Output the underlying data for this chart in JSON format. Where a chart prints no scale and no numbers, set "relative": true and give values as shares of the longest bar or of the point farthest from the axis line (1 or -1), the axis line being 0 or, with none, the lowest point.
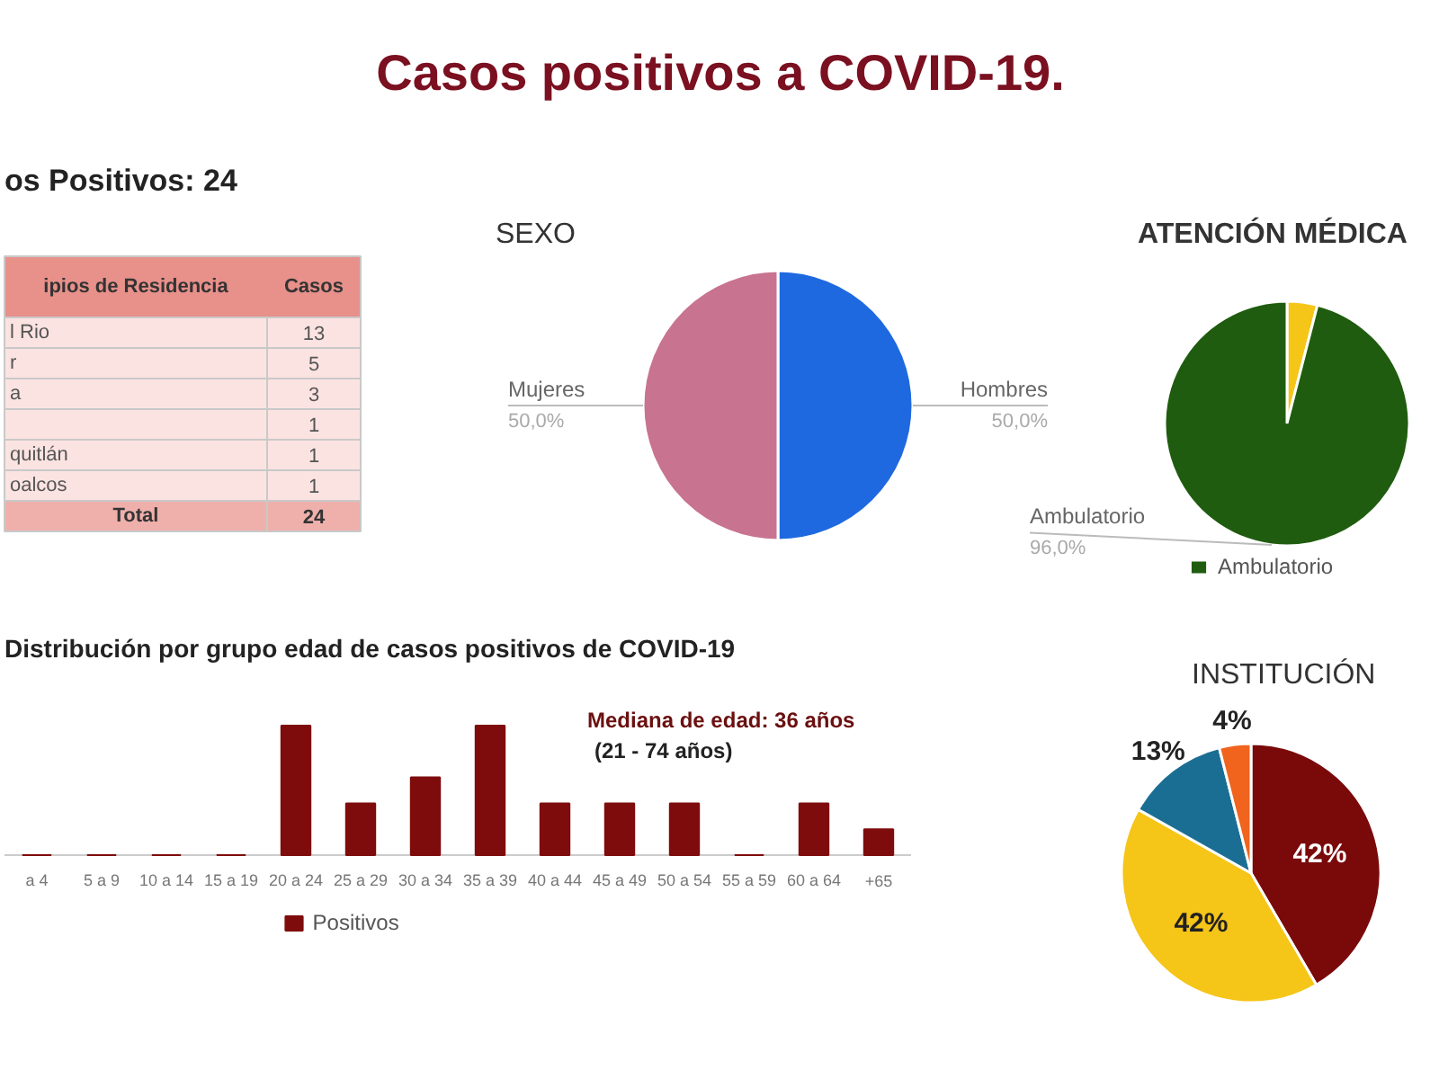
{
  "chart_data": [
    {
      "type": "other",
      "title": "Casos positivos a COVID-19."
    },
    {
      "type": "other",
      "subtitle": "os Positivos: 24",
      "data_labels": true,
      "categories": [
        "l Rio",
        "r",
        "a",
        null,
        "quitlán",
        "oalcos"
      ],
      "values": [
        13,
        5,
        3,
        1,
        1,
        1
      ],
      "annotations": [
        "ipios de Residencia",
        "Casos",
        "Total",
        "24"
      ]
    },
    {
      "type": "pie",
      "title": "SEXO",
      "categories": [
        "Hombres",
        "Mujeres"
      ],
      "values": [
        50,
        50
      ],
      "colors": [
        "#1f69e0",
        "#c8738f"
      ],
      "value_labels": [
        "50,0%",
        "50,0%"
      ]
    },
    {
      "type": "pie",
      "title": "ATENCIÓN MÉDICA",
      "categories": [
        null,
        "Ambulatorio"
      ],
      "values": [
        4,
        96
      ],
      "colors": [
        "#f5c518",
        "#1f5c0f"
      ],
      "value_labels": [
        null,
        "96,0%"
      ],
      "legend": "bottom"
    },
    {
      "type": "bar",
      "title": "Distribución por grupo  edad de casos positivos de COVID-19",
      "relative": true,
      "categories": [
        "a 4",
        "5 a 9",
        "10 a 14",
        "15 a 19",
        "20 a 24",
        "25 a 29",
        "30 a 34",
        "35 a 39",
        "40 a 44",
        "45 a 49",
        "50 a 54",
        "55 a 59",
        "60 a 64",
        "+65"
      ],
      "series": [
        {
          "name": "Positivos",
          "color": "#7f0c0c",
          "values": [
            0,
            0,
            0,
            0,
            1,
            0.4,
            0.6,
            1,
            0.4,
            0.4,
            0.4,
            0,
            0.4,
            0.2
          ]
        }
      ],
      "annotations": [
        "Mediana de edad: 36 años",
        "(21 - 74 años)"
      ],
      "legend": "bottom"
    },
    {
      "type": "pie",
      "title": "INSTITUCIÓN",
      "categories": [
        null,
        null,
        null,
        null
      ],
      "values": [
        42,
        42,
        13,
        4
      ],
      "colors": [
        "#7a0a0a",
        "#f5c518",
        "#1b6e93",
        "#f0641e"
      ],
      "value_labels": [
        "42%",
        "42%",
        "13%",
        "4%"
      ]
    }
  ]
}
